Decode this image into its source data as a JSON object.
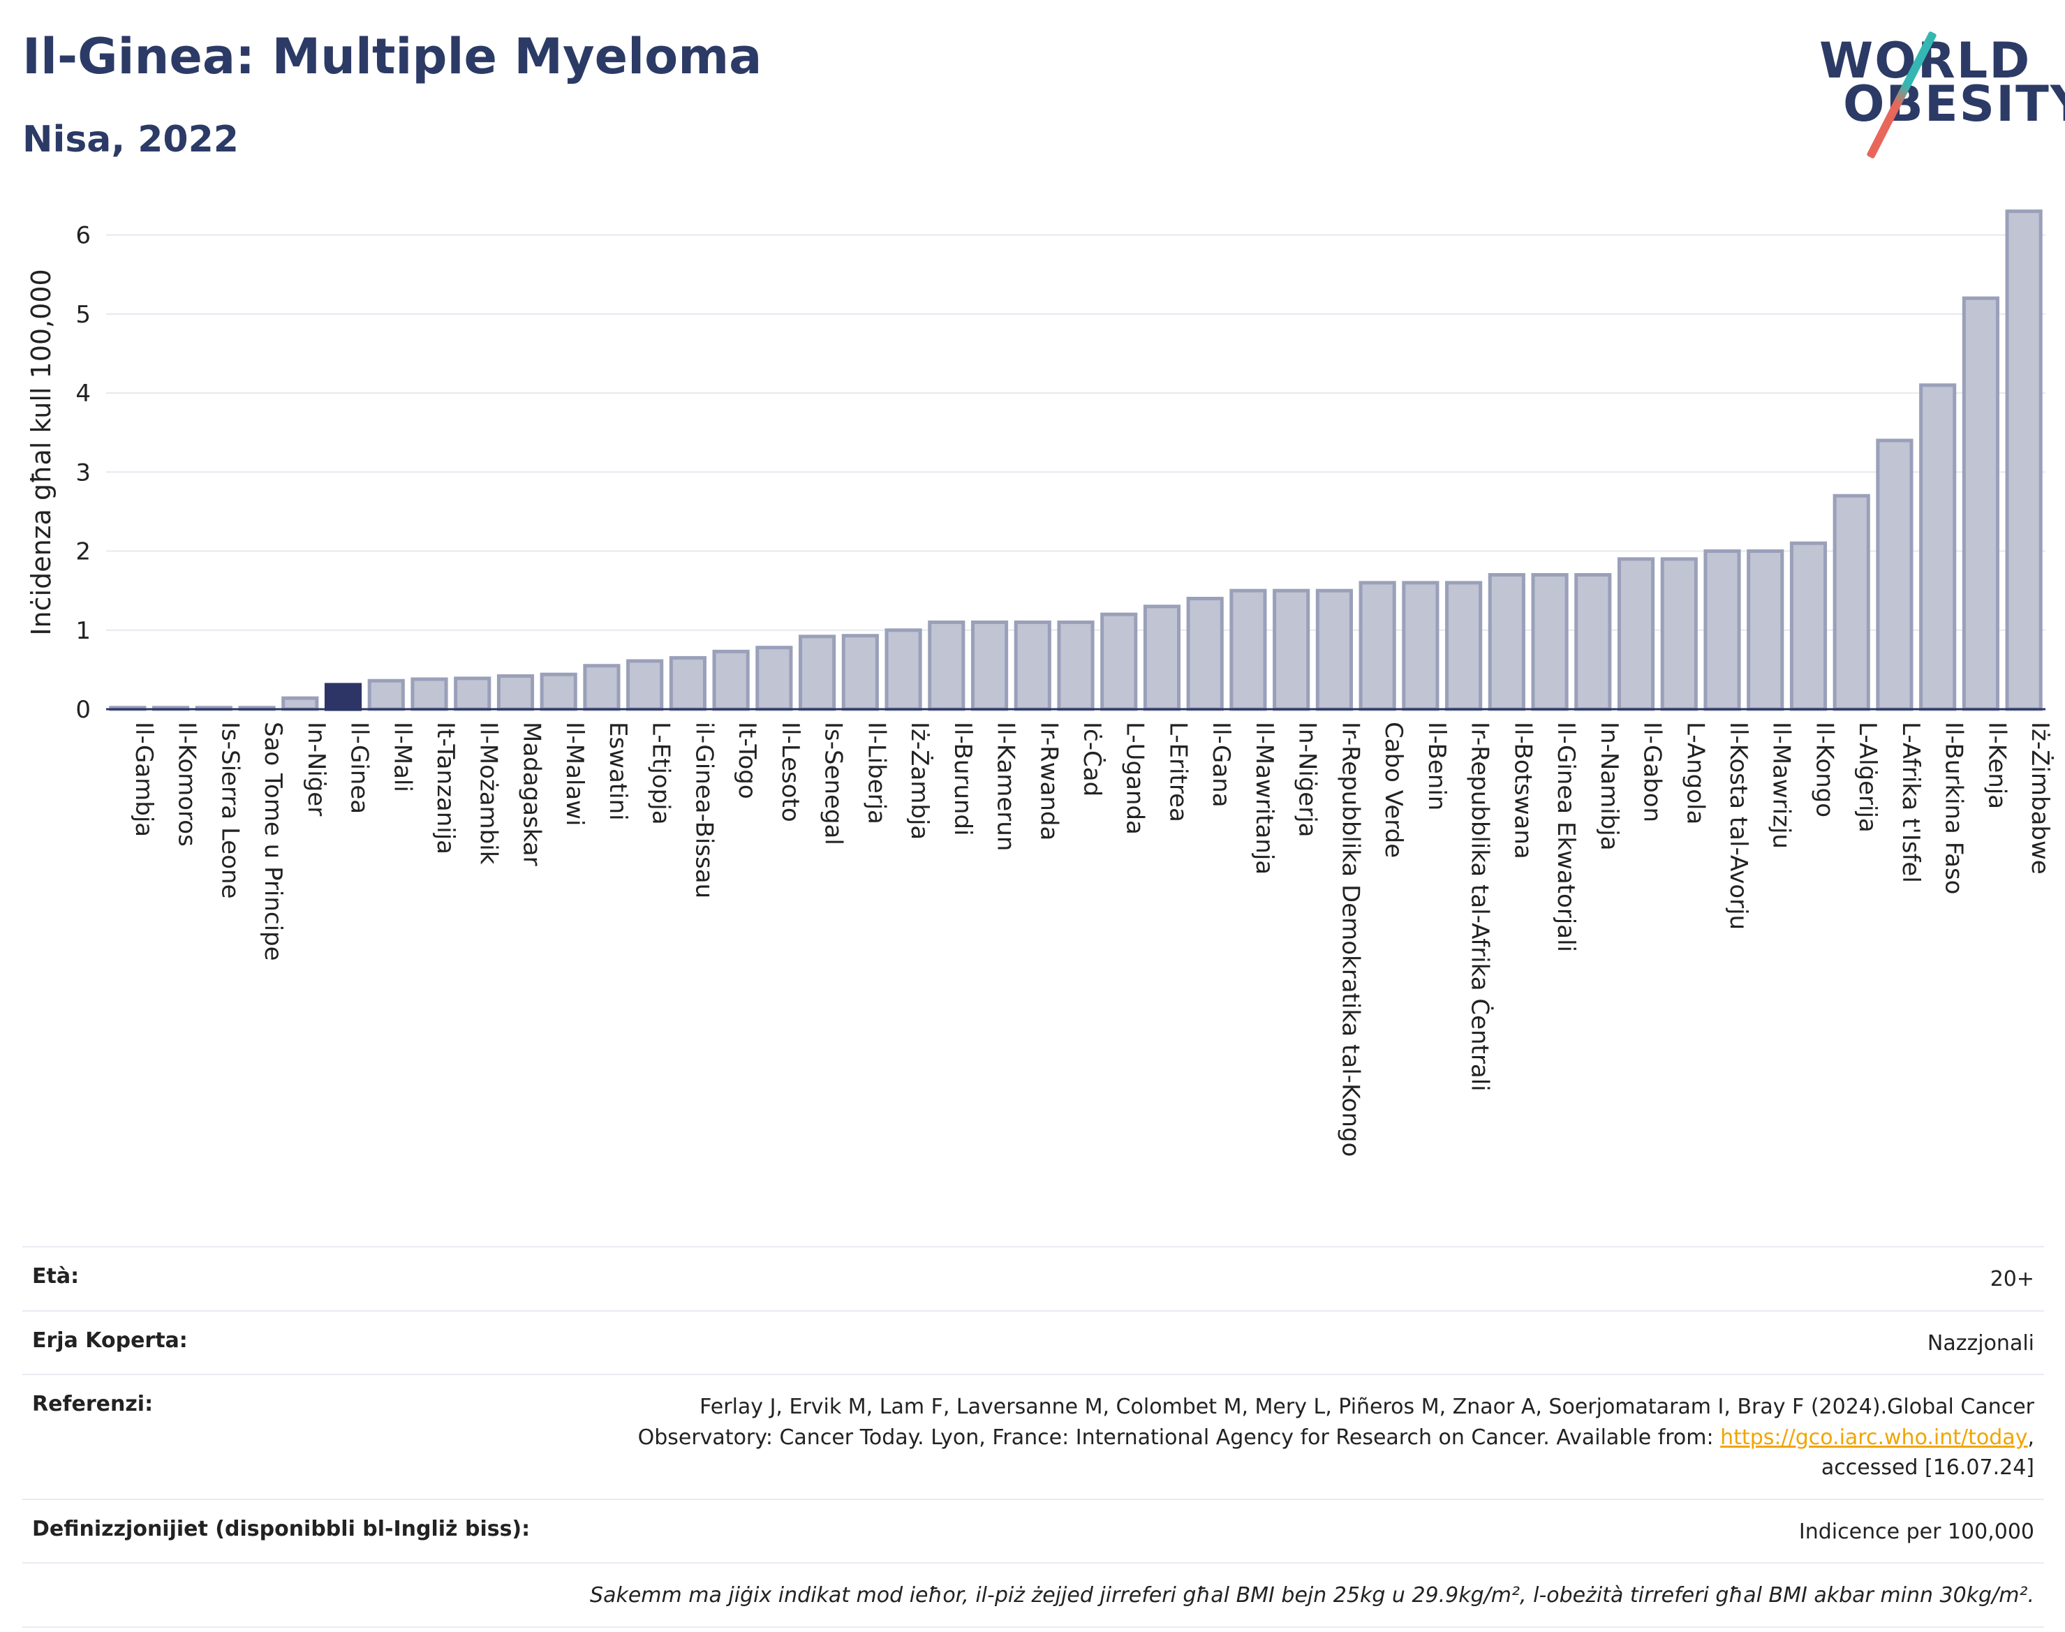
{
  "header": {
    "title": "Il-Ginea: Multiple Myeloma",
    "subtitle": "Nisa, 2022"
  },
  "logo": {
    "line1": "WORLD",
    "line2": "OBESITY",
    "colors": {
      "text": "#2c3a66",
      "slash_top": "#34b7b2",
      "slash_bottom": "#e8675a"
    }
  },
  "chart_data": {
    "type": "bar",
    "ylabel": "Inċidenza għal kull 100,000",
    "ylim": [
      0,
      6.5
    ],
    "yticks": [
      0,
      1,
      2,
      3,
      4,
      5,
      6
    ],
    "grid": true,
    "highlight_index": 5,
    "colors": {
      "bar": "#c0c4d3",
      "bar_edge": "#9aa0b9",
      "highlight": "#2c3566",
      "grid": "#e6e8ef"
    },
    "categories": [
      "Il-Gambja",
      "Il-Komoros",
      "Is-Sierra Leone",
      "Sao Tome u Principe",
      "In-Niġer",
      "Il-Ginea",
      "Il-Mali",
      "It-Tanzanija",
      "Il-Możambik",
      "Madagaskar",
      "Il-Malawi",
      "Eswatini",
      "L-Etjopja",
      "il-Ginea-Bissau",
      "It-Togo",
      "Il-Lesoto",
      "Is-Senegal",
      "Il-Liberja",
      "Iż-Żambja",
      "Il-Burundi",
      "Il-Kamerun",
      "Ir-Rwanda",
      "Iċ-Ċad",
      "L-Uganda",
      "L-Eritrea",
      "Il-Gana",
      "Il-Mawritanja",
      "In-Niġerja",
      "Ir-Repubblika Demokratika tal-Kongo",
      "Cabo Verde",
      "Il-Benin",
      "Ir-Repubblika tal-Afrika Ċentrali",
      "Il-Botswana",
      "Il-Ginea Ekwatorjali",
      "In-Namibja",
      "Il-Gabon",
      "L-Angola",
      "Il-Kosta tal-Avorju",
      "Il-Mawrizju",
      "Il-Kongo",
      "L-Alġerija",
      "L-Afrika t'Isfel",
      "Il-Burkina Faso",
      "Il-Kenja",
      "Iż-Żimbabwe"
    ],
    "values": [
      0.02,
      0.02,
      0.02,
      0.02,
      0.14,
      0.31,
      0.36,
      0.38,
      0.39,
      0.42,
      0.44,
      0.55,
      0.61,
      0.65,
      0.73,
      0.78,
      0.92,
      0.93,
      1.0,
      1.1,
      1.1,
      1.1,
      1.1,
      1.2,
      1.3,
      1.4,
      1.5,
      1.5,
      1.5,
      1.6,
      1.6,
      1.6,
      1.7,
      1.7,
      1.7,
      1.9,
      1.9,
      2.0,
      2.0,
      2.1,
      2.7,
      3.4,
      4.1,
      5.2,
      6.3
    ]
  },
  "info": {
    "age_label": "Età:",
    "age_value": "20+",
    "area_label": "Erja Koperta:",
    "area_value": "Nazzjonali",
    "ref_label": "Referenzi:",
    "ref_text1": "Ferlay J, Ervik M, Lam F, Laversanne M, Colombet M, Mery L, Piñeros M, Znaor A, Soerjomataram I, Bray F (2024).Global Cancer Observatory: Cancer Today. Lyon, France: International Agency for Research on Cancer. Available from: ",
    "ref_link": "https://gco.iarc.who.int/today",
    "ref_text2": ", accessed [16.07.24]",
    "def_label": "Definizzjonijiet (disponibbli bl-Ingliż biss):",
    "def_value": "Indicence per 100,000",
    "note": "Sakemm ma jiġix indikat mod ieħor, il-piż żejjed jirreferi għal BMI bejn 25kg u 29.9kg/m², l-obeżità tirreferi għal BMI akbar minn 30kg/m²."
  }
}
